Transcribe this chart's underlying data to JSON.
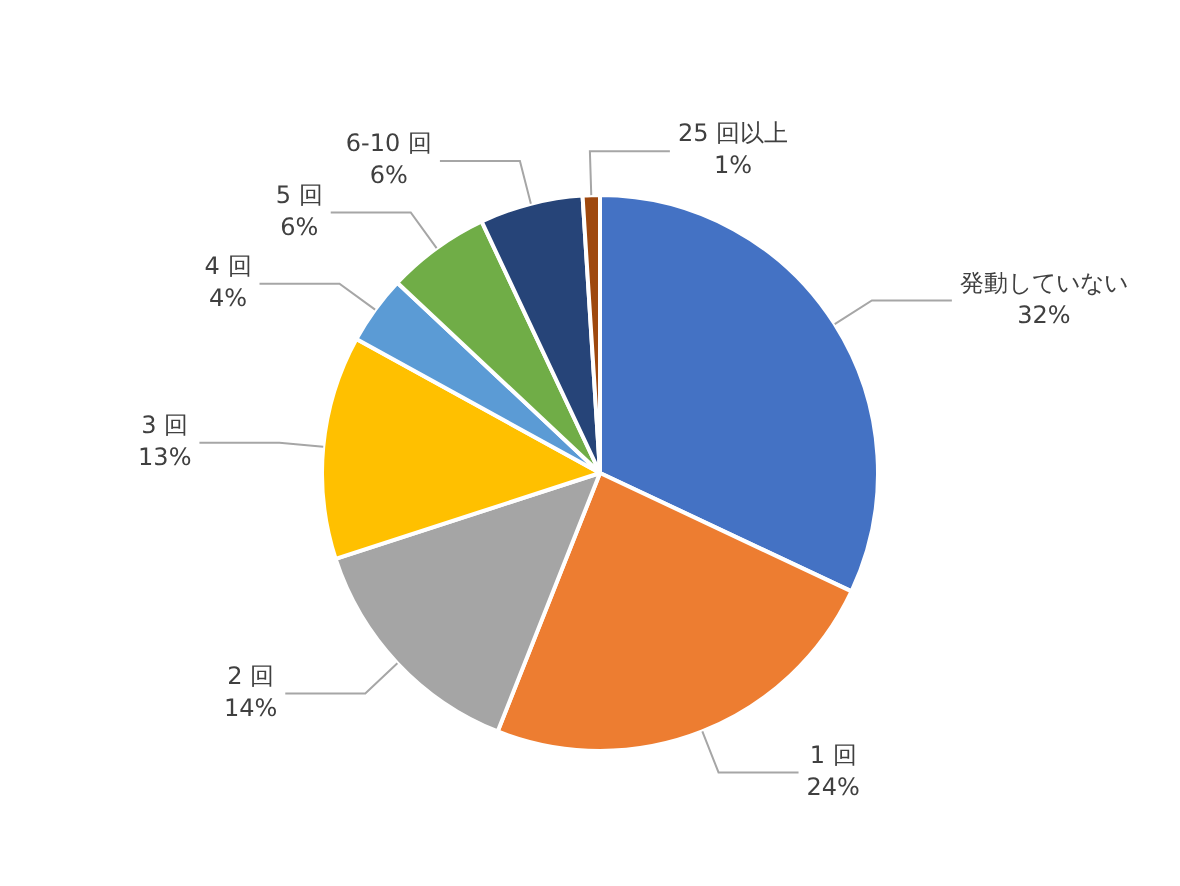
{
  "chart_data": {
    "type": "pie",
    "categories": [
      "発動していない",
      "1 回",
      "2 回",
      "3 回",
      "4 回",
      "5 回",
      "6-10 回",
      "25 回以上"
    ],
    "values": [
      32,
      24,
      14,
      13,
      4,
      6,
      6,
      1
    ],
    "value_labels": [
      "32%",
      "24%",
      "14%",
      "13%",
      "4%",
      "6%",
      "6%",
      "1%"
    ],
    "colors": [
      "#4472c4",
      "#ed7d31",
      "#a5a5a5",
      "#ffc000",
      "#5b9bd5",
      "#70ad47",
      "#264478",
      "#9e480e"
    ],
    "legend": false
  }
}
